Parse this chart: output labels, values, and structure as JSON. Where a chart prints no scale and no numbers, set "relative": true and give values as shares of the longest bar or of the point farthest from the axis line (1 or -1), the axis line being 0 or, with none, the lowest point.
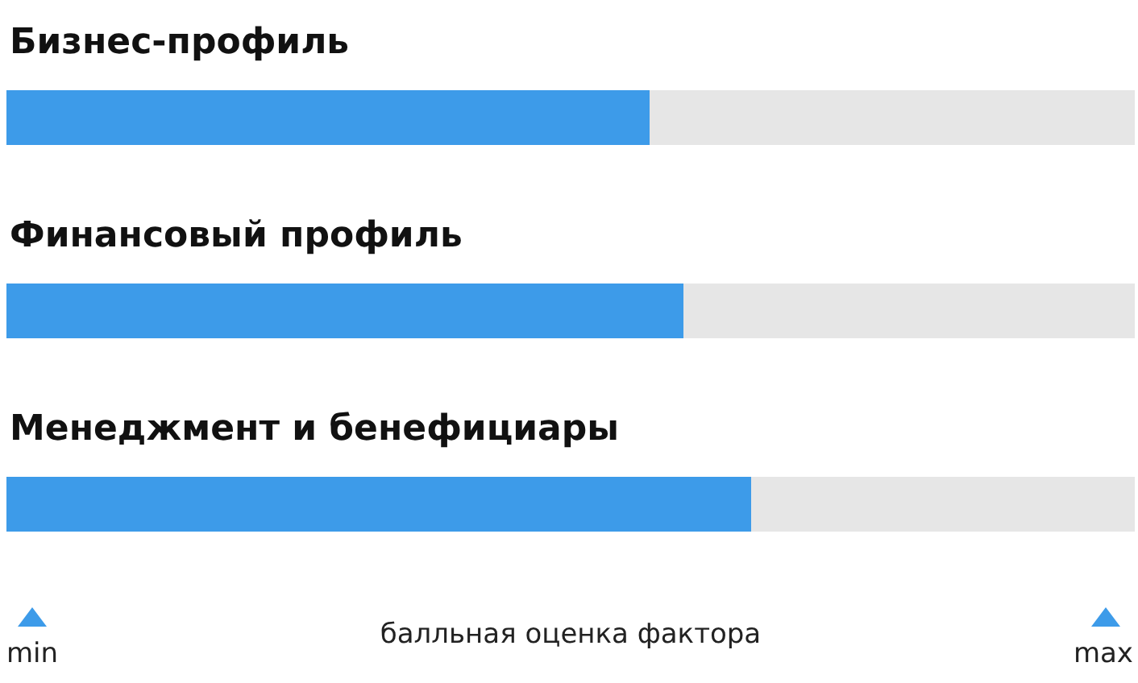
{
  "chart_data": {
    "type": "bar",
    "orientation": "horizontal",
    "stacked": true,
    "relative": true,
    "categories": [
      "Бизнес-профиль",
      "Финансовый профиль",
      "Менеджмент и бенефициары"
    ],
    "series": [
      {
        "color": "#3d9be9",
        "values": [
          0.57,
          0.6,
          0.66
        ]
      },
      {
        "color": "#e6e6e6",
        "values": [
          0.43,
          0.4,
          0.34
        ]
      }
    ],
    "xlabel": "балльная оценка фактора",
    "annotations": [
      "min",
      "max"
    ]
  }
}
